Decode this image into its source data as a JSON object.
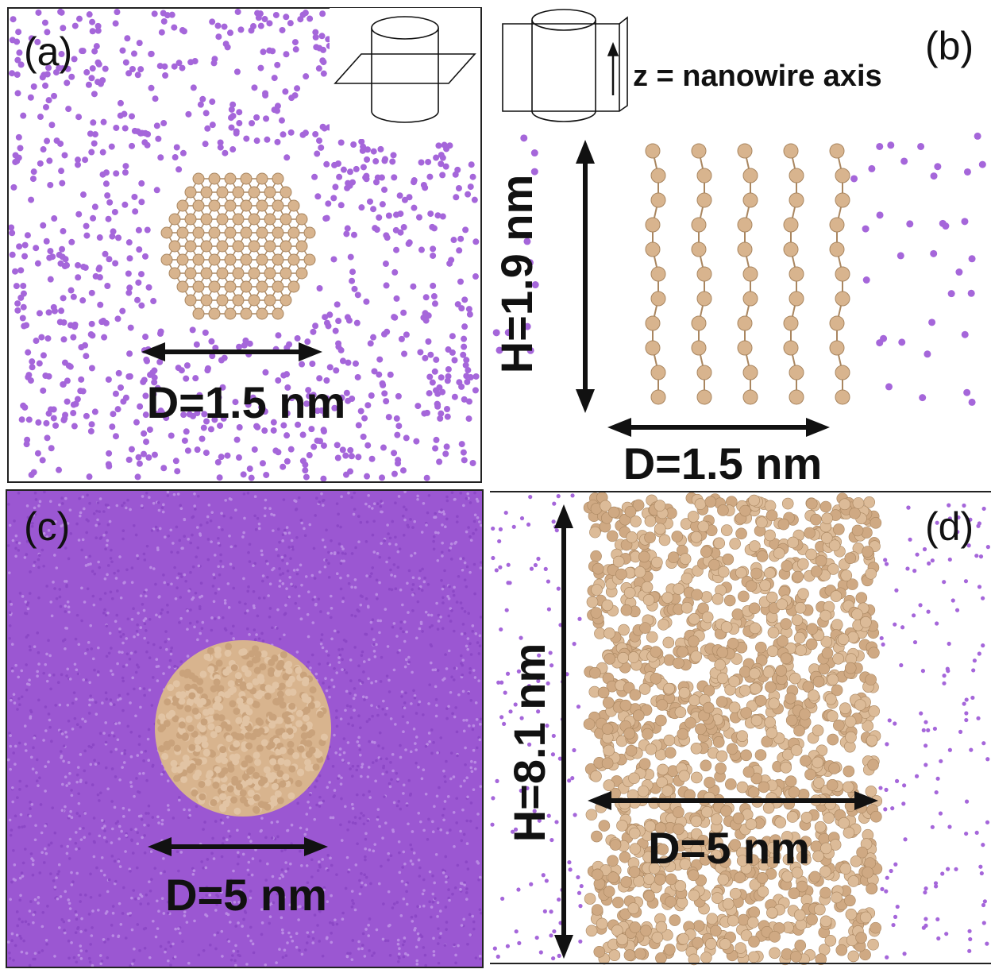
{
  "panels": [
    {
      "label": "(a)",
      "diameter": "D=1.5 nm"
    },
    {
      "label": "(b)",
      "axis_note": "z = nanowire axis",
      "height": "H=1.9 nm",
      "diameter": "D=1.5 nm"
    },
    {
      "label": "(c)",
      "diameter": "D=5 nm"
    },
    {
      "label": "(d)",
      "height": "H=8.1 nm",
      "diameter": "D=5 nm"
    }
  ]
}
